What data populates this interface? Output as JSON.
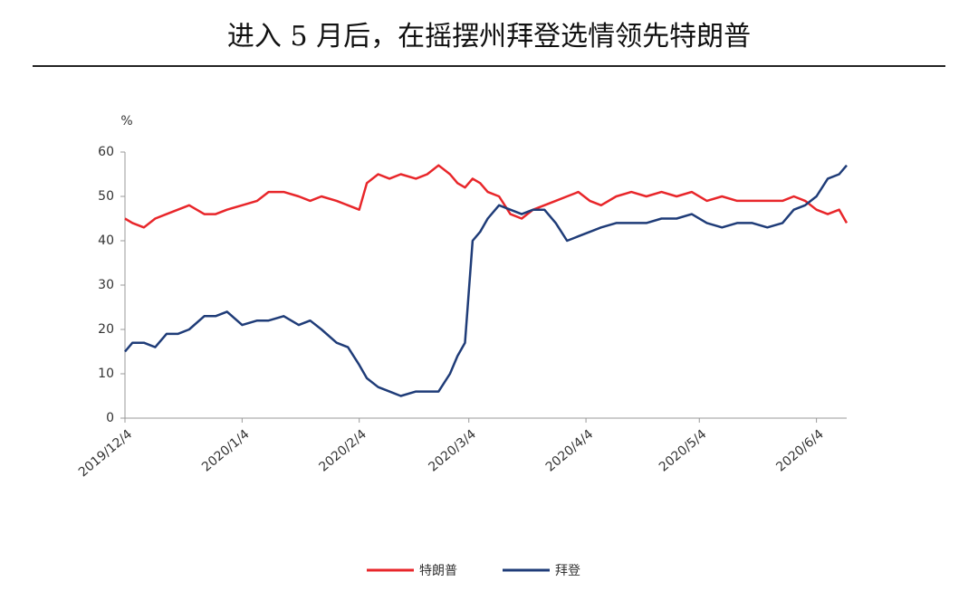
{
  "chart_data": {
    "type": "line",
    "title": "进入 5 月后，在摇摆州拜登选情领先特朗普",
    "y_label": "%",
    "x": [
      "2019/12/4",
      "2019/12/6",
      "2019/12/9",
      "2019/12/12",
      "2019/12/15",
      "2019/12/18",
      "2019/12/21",
      "2019/12/25",
      "2019/12/28",
      "2019/12/31",
      "2020/1/4",
      "2020/1/8",
      "2020/1/11",
      "2020/1/15",
      "2020/1/19",
      "2020/1/22",
      "2020/1/25",
      "2020/1/29",
      "2020/2/1",
      "2020/2/4",
      "2020/2/6",
      "2020/2/9",
      "2020/2/12",
      "2020/2/15",
      "2020/2/19",
      "2020/2/22",
      "2020/2/25",
      "2020/2/28",
      "2020/3/1",
      "2020/3/3",
      "2020/3/5",
      "2020/3/7",
      "2020/3/9",
      "2020/3/12",
      "2020/3/15",
      "2020/3/18",
      "2020/3/21",
      "2020/3/24",
      "2020/3/27",
      "2020/3/30",
      "2020/4/2",
      "2020/4/5",
      "2020/4/8",
      "2020/4/12",
      "2020/4/16",
      "2020/4/20",
      "2020/4/24",
      "2020/4/28",
      "2020/5/2",
      "2020/5/6",
      "2020/5/10",
      "2020/5/14",
      "2020/5/18",
      "2020/5/22",
      "2020/5/26",
      "2020/5/29",
      "2020/6/1",
      "2020/6/4",
      "2020/6/7",
      "2020/6/10",
      "2020/6/12"
    ],
    "series": [
      {
        "name": "特朗普",
        "color": "#e8262a",
        "values": [
          45,
          44,
          43,
          45,
          46,
          47,
          48,
          46,
          46,
          47,
          48,
          49,
          51,
          51,
          50,
          49,
          50,
          49,
          48,
          47,
          53,
          55,
          54,
          55,
          54,
          55,
          57,
          55,
          53,
          52,
          54,
          53,
          51,
          50,
          46,
          45,
          47,
          48,
          49,
          50,
          51,
          49,
          48,
          50,
          51,
          50,
          51,
          50,
          51,
          49,
          50,
          49,
          49,
          49,
          49,
          50,
          49,
          47,
          46,
          47,
          44
        ]
      },
      {
        "name": "拜登",
        "color": "#1f3c78",
        "values": [
          15,
          17,
          17,
          16,
          19,
          19,
          20,
          23,
          23,
          24,
          21,
          22,
          22,
          23,
          21,
          22,
          20,
          17,
          16,
          12,
          9,
          7,
          6,
          5,
          6,
          6,
          6,
          10,
          14,
          17,
          40,
          42,
          45,
          48,
          47,
          46,
          47,
          47,
          44,
          40,
          41,
          42,
          43,
          44,
          44,
          44,
          45,
          45,
          46,
          44,
          43,
          44,
          44,
          43,
          44,
          47,
          48,
          50,
          54,
          55,
          57
        ]
      }
    ],
    "xlim": [
      "2019/12/4",
      "2020/6/12"
    ],
    "xticks": [
      "2019/12/4",
      "2020/1/4",
      "2020/2/4",
      "2020/3/4",
      "2020/4/4",
      "2020/5/4",
      "2020/6/4"
    ],
    "ylim": [
      0,
      60
    ],
    "yticks": [
      0,
      10,
      20,
      30,
      40,
      50,
      60
    ],
    "legend": "bottom"
  }
}
